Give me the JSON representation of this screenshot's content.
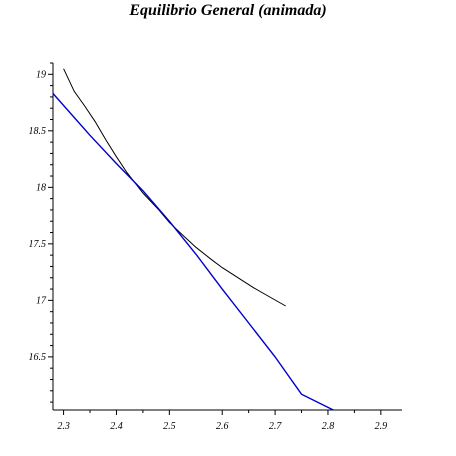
{
  "chart_data": {
    "type": "line",
    "title": "Equilibrio General (animada)",
    "xlabel": "",
    "ylabel": "",
    "xlim": [
      2.28,
      2.94
    ],
    "ylim": [
      16.03,
      19.1
    ],
    "x_ticks": [
      2.3,
      2.4,
      2.5,
      2.6,
      2.7,
      2.8,
      2.9
    ],
    "x_tick_labels": [
      "2.3",
      "2.4",
      "2.5",
      "2.6",
      "2.7",
      "2.8",
      "2.9"
    ],
    "y_ticks": [
      16.5,
      17,
      17.5,
      18,
      18.5,
      19
    ],
    "y_tick_labels": [
      "16.5",
      "17",
      "17.5",
      "18",
      "18.5",
      "19"
    ],
    "grid": false,
    "series": [
      {
        "color": "#000000",
        "points": [
          [
            2.3,
            19.05
          ],
          [
            2.32,
            18.85
          ],
          [
            2.34,
            18.72
          ],
          [
            2.36,
            18.58
          ],
          [
            2.38,
            18.42
          ],
          [
            2.4,
            18.27
          ],
          [
            2.42,
            18.13
          ],
          [
            2.45,
            17.95
          ],
          [
            2.48,
            17.8
          ],
          [
            2.5,
            17.69
          ],
          [
            2.52,
            17.6
          ],
          [
            2.55,
            17.47
          ],
          [
            2.58,
            17.36
          ],
          [
            2.6,
            17.29
          ],
          [
            2.63,
            17.2
          ],
          [
            2.66,
            17.11
          ],
          [
            2.69,
            17.03
          ],
          [
            2.72,
            16.95
          ]
        ]
      },
      {
        "color": "#0000cc",
        "points": [
          [
            2.28,
            18.83
          ],
          [
            2.35,
            18.46
          ],
          [
            2.4,
            18.21
          ],
          [
            2.45,
            17.97
          ],
          [
            2.5,
            17.7
          ],
          [
            2.55,
            17.41
          ],
          [
            2.6,
            17.1
          ],
          [
            2.65,
            16.8
          ],
          [
            2.7,
            16.5
          ],
          [
            2.75,
            16.17
          ],
          [
            2.81,
            16.03
          ]
        ]
      }
    ]
  }
}
